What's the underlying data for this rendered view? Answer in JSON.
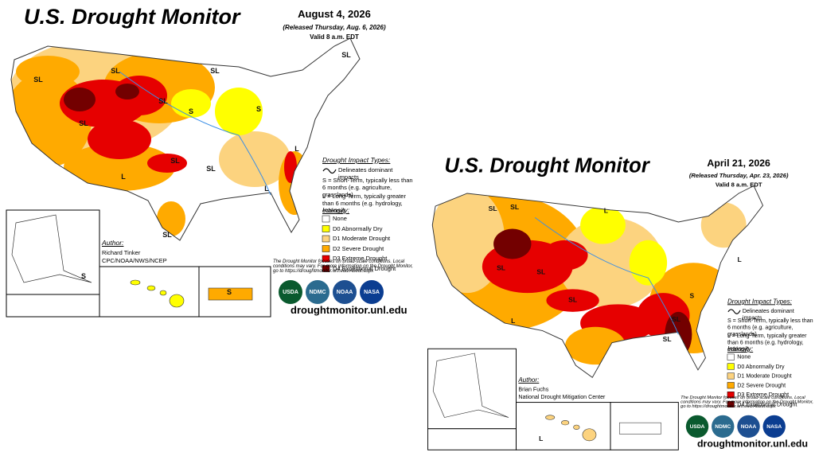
{
  "maps": [
    {
      "title": "U.S. Drought Monitor",
      "date": "August 4, 2026",
      "released": "(Released Thursday, Aug. 6, 2026)",
      "valid": "Valid 8 a.m. EDT",
      "impact_title": "Drought Impact Types:",
      "impact_line": "Delineates dominant impacts",
      "impact_s": "S = Short-Term, typically less than 6 months (e.g. agriculture, grasslands)",
      "impact_l": "L = Long-Term, typically greater than 6 months (e.g. hydrology, ecology)",
      "intensity_title": "Intensity:",
      "intensity": [
        {
          "label": "None",
          "color": "#ffffff"
        },
        {
          "label": "D0 Abnormally Dry",
          "color": "#ffff00"
        },
        {
          "label": "D1 Moderate Drought",
          "color": "#fcd37f"
        },
        {
          "label": "D2 Severe Drought",
          "color": "#ffaa00"
        },
        {
          "label": "D3 Extreme Drought",
          "color": "#e60000"
        },
        {
          "label": "D4 Exceptional Drought",
          "color": "#730000"
        }
      ],
      "author_title": "Author:",
      "author": [
        "Richard Tinker",
        "CPC/NOAA/NWS/NCEP"
      ],
      "disclaimer": "The Drought Monitor focuses on broad-scale conditions. Local conditions may vary. For more information on the Drought Monitor, go to https://droughtmonitor.unl.edu/About.aspx",
      "logos": [
        "USDA",
        "NDMC",
        "NOAA",
        "NASA"
      ],
      "url": "droughtmonitor.unl.edu",
      "map_labels": [
        "SL",
        "SL",
        "SL",
        "S",
        "SL",
        "SL",
        "S",
        "SL",
        "SL",
        "L",
        "L",
        "L",
        "SL",
        "S",
        "S",
        "SL"
      ]
    },
    {
      "title": "U.S. Drought Monitor",
      "date": "April 21, 2026",
      "released": "(Released Thursday, Apr. 23, 2026)",
      "valid": "Valid 8 a.m. EDT",
      "impact_title": "Drought Impact Types:",
      "impact_line": "Delineates dominant impacts",
      "impact_s": "S = Short-Term, typically less than 6 months (e.g. agriculture, grasslands)",
      "impact_l": "L = Long-Term, typically greater than 6 months (e.g. hydrology, ecology)",
      "intensity_title": "Intensity:",
      "intensity": [
        {
          "label": "None",
          "color": "#ffffff"
        },
        {
          "label": "D0 Abnormally Dry",
          "color": "#ffff00"
        },
        {
          "label": "D1 Moderate Drought",
          "color": "#fcd37f"
        },
        {
          "label": "D2 Severe Drought",
          "color": "#ffaa00"
        },
        {
          "label": "D3 Extreme Drought",
          "color": "#e60000"
        },
        {
          "label": "D4 Exceptional Drought",
          "color": "#730000"
        }
      ],
      "author_title": "Author:",
      "author": [
        "Brian Fuchs",
        "National Drought Mitigation Center"
      ],
      "disclaimer": "The Drought Monitor focuses on broad-scale conditions. Local conditions may vary. For more information on the Drought Monitor, go to https://droughtmonitor.unl.edu/About.aspx",
      "logos": [
        "USDA",
        "NDMC",
        "NOAA",
        "NASA"
      ],
      "url": "droughtmonitor.unl.edu",
      "map_labels": [
        "SL",
        "SL",
        "L",
        "SL",
        "SL",
        "SL",
        "S",
        "SL",
        "L",
        "L",
        "L",
        "SL"
      ]
    }
  ]
}
